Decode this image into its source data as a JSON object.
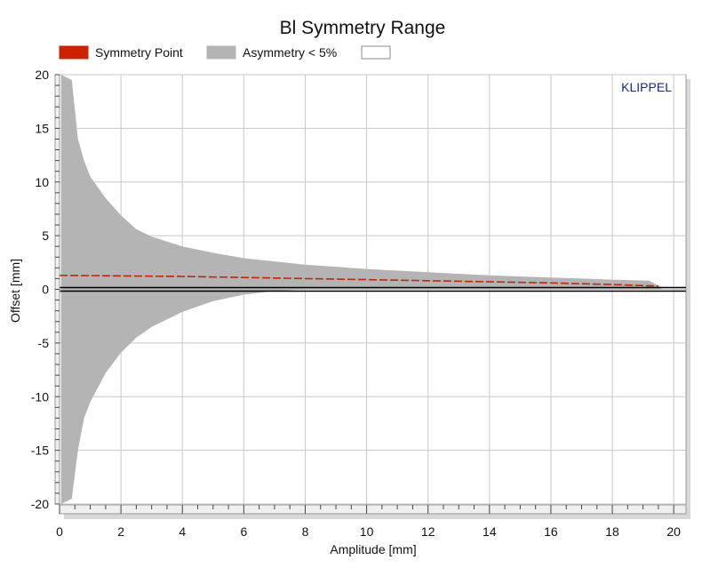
{
  "chart_data": {
    "type": "area",
    "title": "Bl Symmetry Range",
    "xlabel": "Amplitude [mm]",
    "ylabel": "Offset [mm]",
    "xlim": [
      0,
      20.4
    ],
    "ylim": [
      -20,
      20
    ],
    "xticks": [
      0,
      2,
      4,
      6,
      8,
      10,
      12,
      14,
      16,
      18,
      20
    ],
    "yticks": [
      -20,
      -15,
      -10,
      -5,
      0,
      5,
      10,
      15,
      20
    ],
    "grid": true,
    "legend_position": "top",
    "brand": "KLIPPEL",
    "legend": [
      {
        "label": "Symmetry Point",
        "color": "#cc2200"
      },
      {
        "label": "Asymmetry < 5%",
        "color": "#b4b4b4"
      },
      {
        "label": "",
        "color": "#ffffff"
      }
    ],
    "series": [
      {
        "name": "Asymmetry < 5%",
        "kind": "band",
        "color": "#b4b4b4",
        "x": [
          0.05,
          0.4,
          0.6,
          0.8,
          1.0,
          1.5,
          2.0,
          2.5,
          3.0,
          4.0,
          5.0,
          6.0,
          7.0,
          8.0,
          9.0,
          10.0,
          12.0,
          14.0,
          16.0,
          18.0,
          19.2,
          19.6
        ],
        "upper": [
          20.0,
          19.5,
          14.0,
          12.0,
          10.5,
          8.5,
          6.9,
          5.6,
          4.9,
          4.0,
          3.4,
          2.9,
          2.6,
          2.3,
          2.1,
          1.9,
          1.6,
          1.3,
          1.1,
          0.9,
          0.8,
          0.2
        ],
        "lower": [
          -20.0,
          -19.5,
          -15.0,
          -12.0,
          -10.5,
          -7.8,
          -5.9,
          -4.5,
          -3.5,
          -2.1,
          -1.1,
          -0.5,
          -0.15,
          0.0,
          0.0,
          0.0,
          0.0,
          0.0,
          0.0,
          0.0,
          0.0,
          0.0
        ]
      },
      {
        "name": "Symmetry Point",
        "kind": "line",
        "color": "#cc2200",
        "x": [
          0.0,
          2.0,
          4.0,
          6.0,
          8.0,
          10.0,
          12.0,
          14.0,
          16.0,
          18.0,
          19.5
        ],
        "y": [
          1.3,
          1.25,
          1.2,
          1.1,
          1.0,
          0.9,
          0.8,
          0.7,
          0.6,
          0.45,
          0.3
        ]
      }
    ]
  }
}
